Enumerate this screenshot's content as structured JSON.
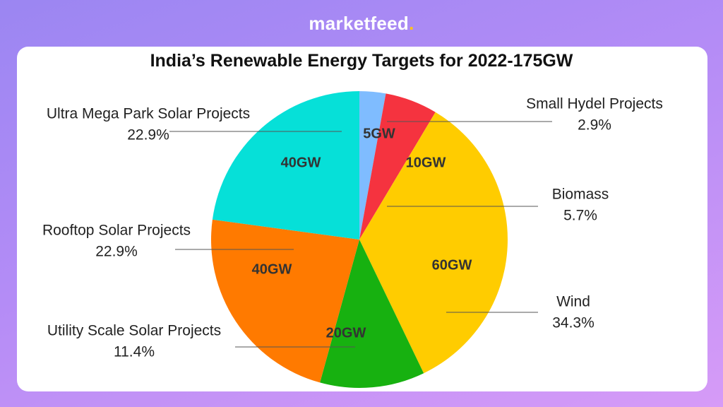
{
  "brand": {
    "name": "marketfeed",
    "dot": "."
  },
  "chart_data": {
    "type": "pie",
    "title": "India’s Renewable Energy Targets for 2022-175GW",
    "slices": [
      {
        "name": "Small Hydel Projects",
        "value": 5,
        "value_label": "5GW",
        "percent": "2.9%",
        "color": "#7fbcff"
      },
      {
        "name": "Biomass",
        "value": 10,
        "value_label": "10GW",
        "percent": "5.7%",
        "color": "#f5333f"
      },
      {
        "name": "Wind",
        "value": 60,
        "value_label": "60GW",
        "percent": "34.3%",
        "color": "#ffcc00"
      },
      {
        "name": "Utility Scale Solar Projects",
        "value": 20,
        "value_label": "20GW",
        "percent": "11.4%",
        "color": "#17b110"
      },
      {
        "name": "Rooftop Solar Projects",
        "value": 40,
        "value_label": "40GW",
        "percent": "22.9%",
        "color": "#ff7a00"
      },
      {
        "name": "Ultra Mega Park Solar Projects",
        "value": 40,
        "value_label": "40GW",
        "percent": "22.9%",
        "color": "#06e0d8"
      }
    ]
  }
}
